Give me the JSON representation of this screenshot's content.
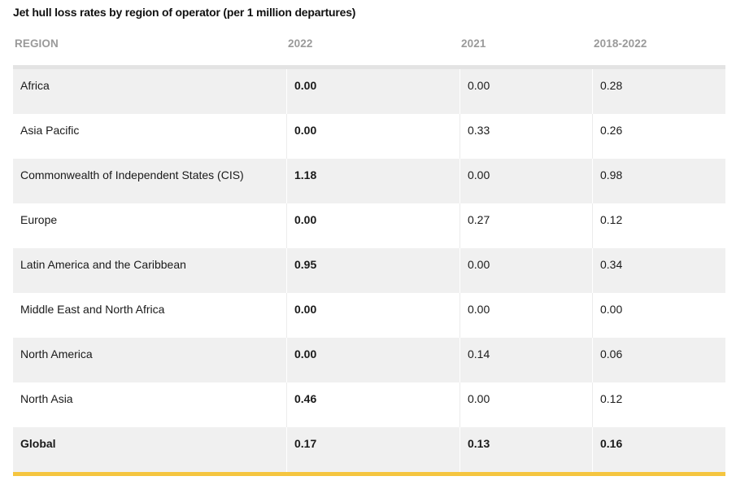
{
  "chart_data": {
    "type": "table",
    "title": "Jet hull loss rates by region of operator (per 1 million departures)",
    "columns": [
      "REGION",
      "2022",
      "2021",
      "2018-2022"
    ],
    "rows": [
      {
        "region": "Africa",
        "y2022": "0.00",
        "y2021": "0.00",
        "y2018_2022": "0.28"
      },
      {
        "region": "Asia Pacific",
        "y2022": "0.00",
        "y2021": "0.33",
        "y2018_2022": "0.26"
      },
      {
        "region": "Commonwealth of Independent States (CIS)",
        "y2022": "1.18",
        "y2021": "0.00",
        "y2018_2022": "0.98"
      },
      {
        "region": "Europe",
        "y2022": "0.00",
        "y2021": "0.27",
        "y2018_2022": "0.12"
      },
      {
        "region": "Latin America and the Caribbean",
        "y2022": "0.95",
        "y2021": "0.00",
        "y2018_2022": "0.34"
      },
      {
        "region": "Middle East and North Africa",
        "y2022": "0.00",
        "y2021": "0.00",
        "y2018_2022": "0.00"
      },
      {
        "region": "North America",
        "y2022": "0.00",
        "y2021": "0.14",
        "y2018_2022": "0.06"
      },
      {
        "region": "North Asia",
        "y2022": "0.46",
        "y2021": "0.00",
        "y2018_2022": "0.12"
      },
      {
        "region": "Global",
        "y2022": "0.17",
        "y2021": "0.13",
        "y2018_2022": "0.16"
      }
    ]
  },
  "colors": {
    "header_text": "#9a9a9a",
    "row_shade": "#f0f0f0",
    "accent_bar": "#f5c53f"
  }
}
